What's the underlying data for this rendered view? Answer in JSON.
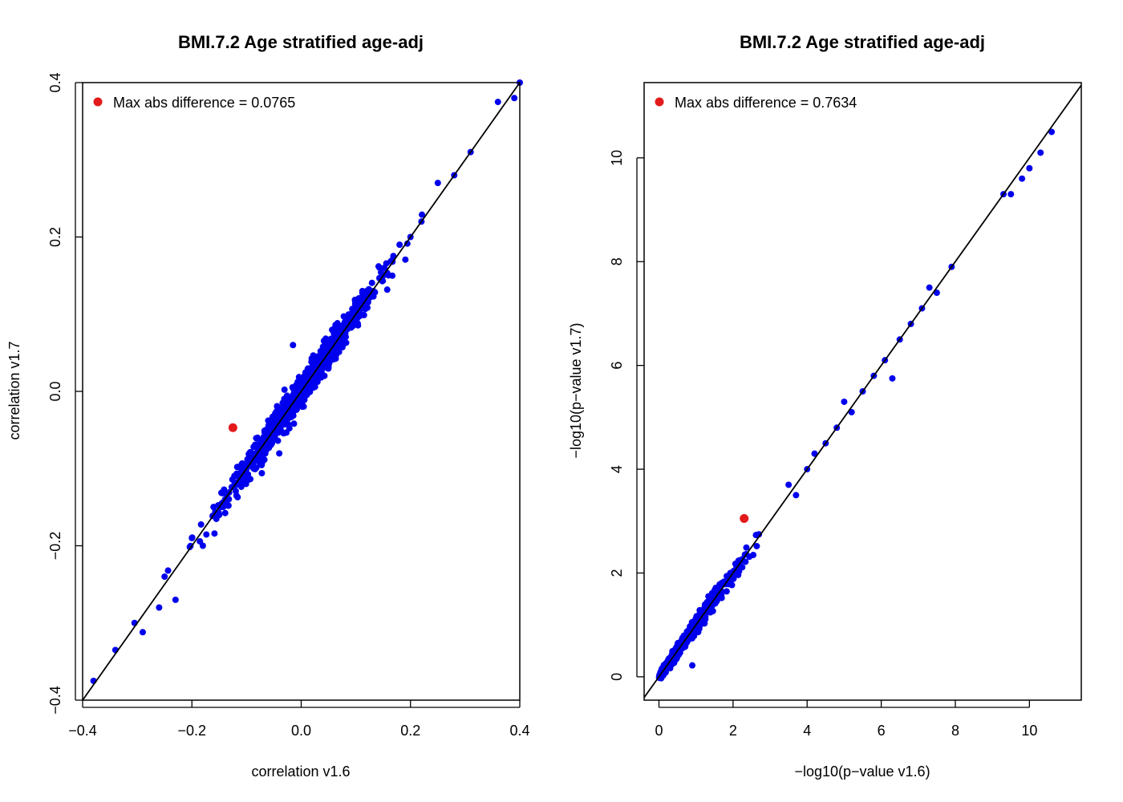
{
  "chart_data": [
    {
      "type": "scatter",
      "title": "BMI.7.2 Age stratified age-adj",
      "xlabel": "correlation v1.6",
      "ylabel": "correlation v1.7",
      "xlim": [
        -0.4,
        0.4
      ],
      "ylim": [
        -0.4,
        0.4
      ],
      "xticks": [
        -0.4,
        -0.2,
        0.0,
        0.2,
        0.4
      ],
      "yticks": [
        -0.4,
        -0.2,
        0.0,
        0.2,
        0.4
      ],
      "xtick_labels": [
        "−0.4",
        "−0.2",
        "0.0",
        "0.2",
        "0.4"
      ],
      "ytick_labels": [
        "−0.4",
        "−0.2",
        "0.0",
        "0.2",
        "0.4"
      ],
      "grid": false,
      "reference_line": "y = x",
      "legend": {
        "position": "top-left",
        "label": "Max abs difference = 0.0765",
        "color": "#e31a1c"
      },
      "point_color": "#0000ee",
      "highlight_color": "#e31a1c",
      "highlight_point": {
        "x": -0.125,
        "y": -0.047
      },
      "bulk": {
        "x_range": [
          -0.38,
          0.4
        ],
        "correlated_with_y": true,
        "spread": 0.01
      },
      "points": [
        {
          "x": -0.38,
          "y": -0.375
        },
        {
          "x": -0.34,
          "y": -0.335
        },
        {
          "x": -0.305,
          "y": -0.3
        },
        {
          "x": -0.29,
          "y": -0.312
        },
        {
          "x": -0.26,
          "y": -0.28
        },
        {
          "x": -0.25,
          "y": -0.24
        },
        {
          "x": -0.23,
          "y": -0.27
        },
        {
          "x": -0.2,
          "y": -0.19
        },
        {
          "x": -0.18,
          "y": -0.2
        },
        {
          "x": -0.15,
          "y": -0.16
        },
        {
          "x": -0.12,
          "y": -0.12
        },
        {
          "x": -0.1,
          "y": -0.1
        },
        {
          "x": -0.08,
          "y": -0.06
        },
        {
          "x": -0.05,
          "y": -0.05
        },
        {
          "x": -0.02,
          "y": -0.01
        },
        {
          "x": -0.015,
          "y": 0.06
        },
        {
          "x": 0.0,
          "y": 0.0
        },
        {
          "x": 0.02,
          "y": 0.03
        },
        {
          "x": 0.05,
          "y": 0.04
        },
        {
          "x": 0.08,
          "y": 0.09
        },
        {
          "x": 0.1,
          "y": 0.1
        },
        {
          "x": 0.12,
          "y": 0.13
        },
        {
          "x": 0.15,
          "y": 0.15
        },
        {
          "x": 0.18,
          "y": 0.19
        },
        {
          "x": 0.2,
          "y": 0.2
        },
        {
          "x": 0.22,
          "y": 0.22
        },
        {
          "x": 0.25,
          "y": 0.27
        },
        {
          "x": 0.28,
          "y": 0.28
        },
        {
          "x": 0.31,
          "y": 0.31
        },
        {
          "x": 0.36,
          "y": 0.375
        },
        {
          "x": 0.39,
          "y": 0.38
        },
        {
          "x": 0.4,
          "y": 0.4
        }
      ]
    },
    {
      "type": "scatter",
      "title": "BMI.7.2 Age stratified age-adj",
      "xlabel": "−log10(p−value v1.6)",
      "ylabel": "−log10(p−value v1.7)",
      "xlim": [
        -0.4,
        11.4
      ],
      "ylim": [
        -0.45,
        11.45
      ],
      "xticks": [
        0,
        2,
        4,
        6,
        8,
        10
      ],
      "yticks": [
        0,
        2,
        4,
        6,
        8,
        10
      ],
      "xtick_labels": [
        "0",
        "2",
        "4",
        "6",
        "8",
        "10"
      ],
      "ytick_labels": [
        "0",
        "2",
        "4",
        "6",
        "8",
        "10"
      ],
      "grid": false,
      "reference_line": "y = x",
      "legend": {
        "position": "top-left",
        "label": "Max abs difference = 0.7634",
        "color": "#e31a1c"
      },
      "point_color": "#0000ee",
      "highlight_color": "#e31a1c",
      "highlight_point": {
        "x": 2.3,
        "y": 3.05
      },
      "bulk": {
        "x_range": [
          0,
          3.2
        ],
        "correlated_with_y": true,
        "spread": 0.08
      },
      "points": [
        {
          "x": 0.9,
          "y": 0.22
        },
        {
          "x": 3.5,
          "y": 3.7
        },
        {
          "x": 3.7,
          "y": 3.5
        },
        {
          "x": 4.0,
          "y": 4.0
        },
        {
          "x": 4.2,
          "y": 4.3
        },
        {
          "x": 4.5,
          "y": 4.5
        },
        {
          "x": 4.8,
          "y": 4.8
        },
        {
          "x": 5.0,
          "y": 5.3
        },
        {
          "x": 5.2,
          "y": 5.1
        },
        {
          "x": 5.5,
          "y": 5.5
        },
        {
          "x": 5.8,
          "y": 5.8
        },
        {
          "x": 6.1,
          "y": 6.1
        },
        {
          "x": 6.3,
          "y": 5.75
        },
        {
          "x": 6.5,
          "y": 6.5
        },
        {
          "x": 6.8,
          "y": 6.8
        },
        {
          "x": 7.1,
          "y": 7.1
        },
        {
          "x": 7.3,
          "y": 7.5
        },
        {
          "x": 7.5,
          "y": 7.4
        },
        {
          "x": 7.9,
          "y": 7.9
        },
        {
          "x": 9.3,
          "y": 9.3
        },
        {
          "x": 9.5,
          "y": 9.3
        },
        {
          "x": 9.8,
          "y": 9.6
        },
        {
          "x": 10.0,
          "y": 9.8
        },
        {
          "x": 10.3,
          "y": 10.1
        },
        {
          "x": 10.6,
          "y": 10.5
        }
      ]
    }
  ]
}
